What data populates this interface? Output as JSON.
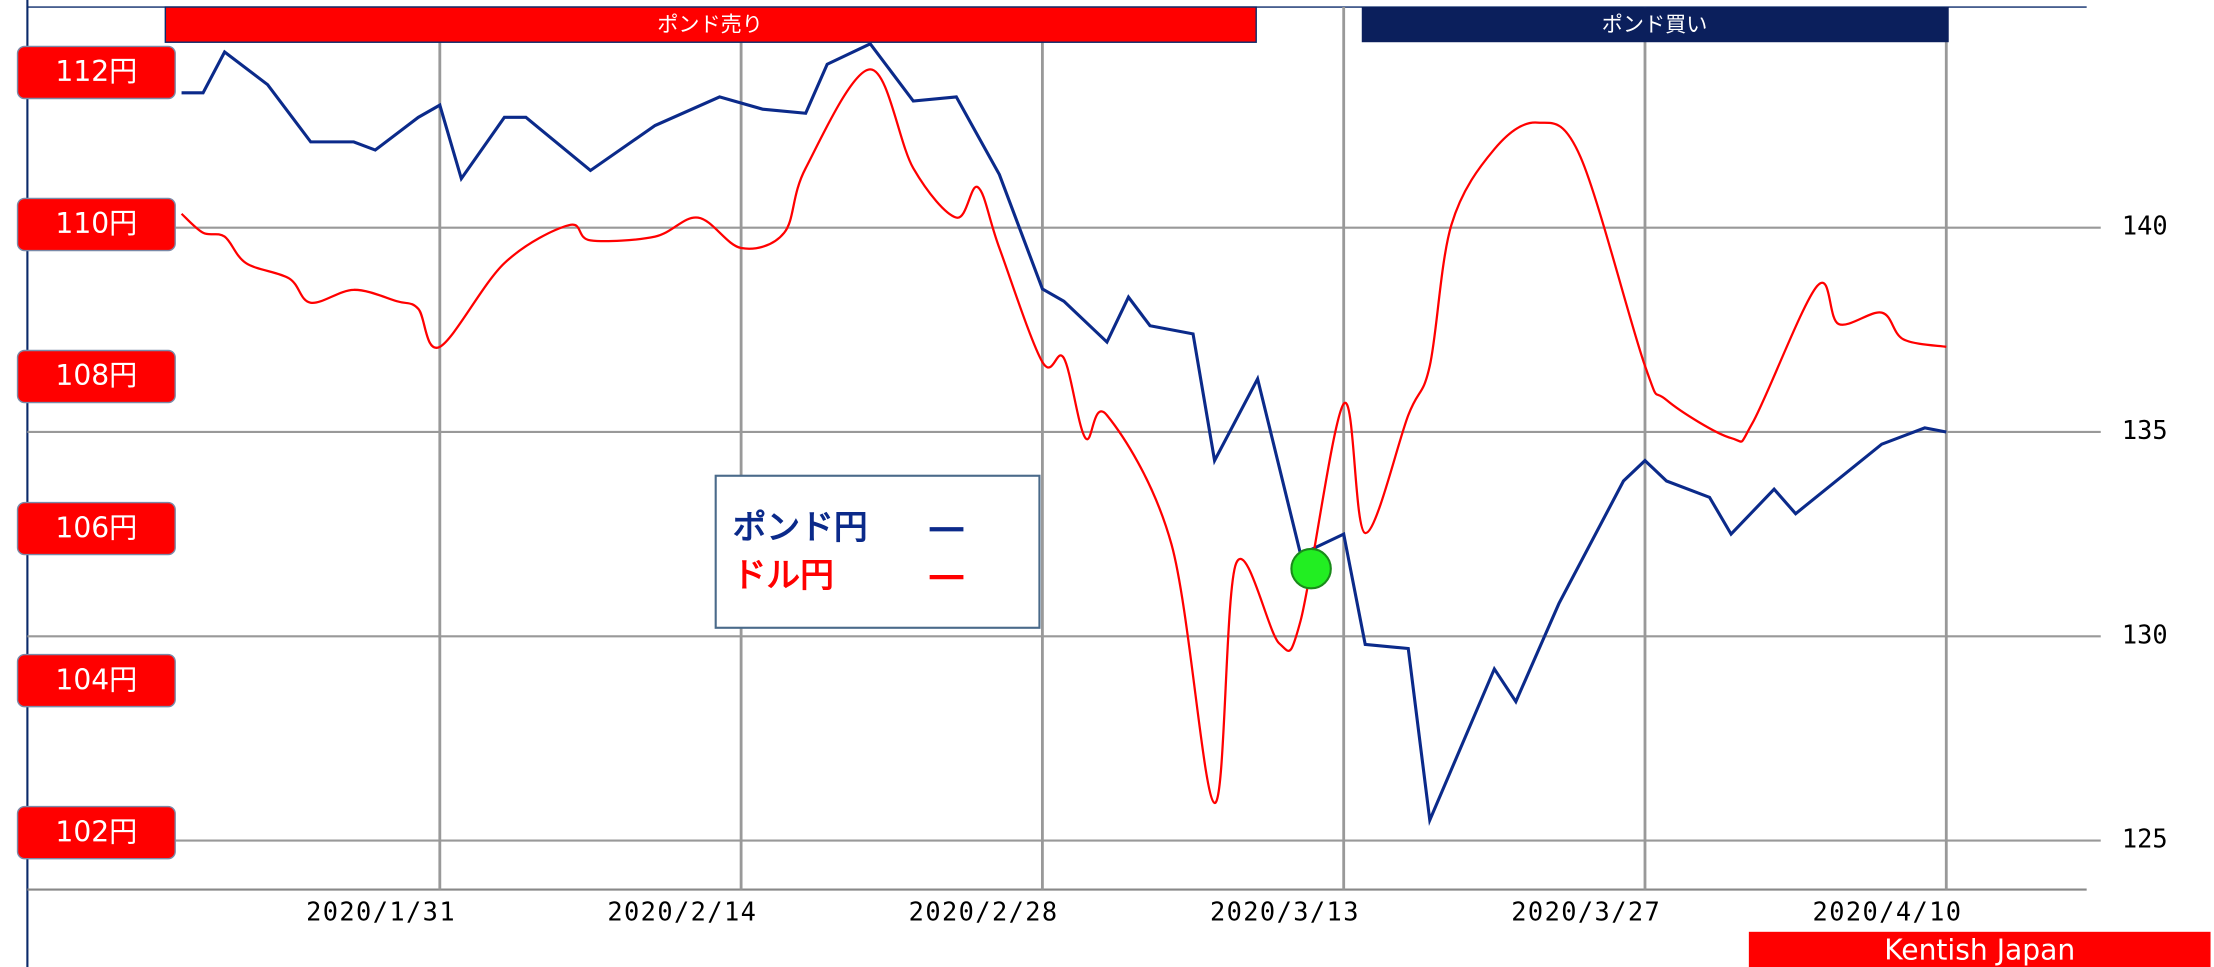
{
  "chart_data": {
    "type": "line",
    "banners": [
      "ポンド売り",
      "ポンド買い"
    ],
    "watermark": "Kentish Japan",
    "xlim": [
      "2020/1/12",
      "2020/4/16"
    ],
    "xticks": [
      "2020/1/31",
      "2020/2/14",
      "2020/2/28",
      "2020/3/13",
      "2020/3/27",
      "2020/4/10"
    ],
    "ylim": [
      101.26,
      112.87
    ],
    "yticks": [
      {
        "value": 102,
        "label": "102円"
      },
      {
        "value": 104,
        "label": "104円"
      },
      {
        "value": 106,
        "label": "106円"
      },
      {
        "value": 108,
        "label": "108円"
      },
      {
        "value": 110,
        "label": "110円"
      },
      {
        "value": 112,
        "label": "112円"
      }
    ],
    "y2lim": [
      123.8,
      145.4
    ],
    "y2ticks": [
      125,
      130,
      135,
      140
    ],
    "grid": true,
    "series": [
      {
        "name": "ポンド円",
        "color": "#0b2a8a",
        "axis": "y2",
        "x": [
          "2020/1/19",
          "2020/1/20",
          "2020/1/21",
          "2020/1/23",
          "2020/1/25",
          "2020/1/27",
          "2020/1/28",
          "2020/1/30",
          "2020/1/31",
          "2020/2/1",
          "2020/2/3",
          "2020/2/4",
          "2020/2/7",
          "2020/2/10",
          "2020/2/13",
          "2020/2/15",
          "2020/2/17",
          "2020/2/18",
          "2020/2/20",
          "2020/2/22",
          "2020/2/24",
          "2020/2/26",
          "2020/2/28",
          "2020/2/29",
          "2020/3/2",
          "2020/3/3",
          "2020/3/4",
          "2020/3/6",
          "2020/3/7",
          "2020/3/9",
          "2020/3/11",
          "2020/3/13",
          "2020/3/14",
          "2020/3/16",
          "2020/3/17",
          "2020/3/20",
          "2020/3/21",
          "2020/3/23",
          "2020/3/26",
          "2020/3/27",
          "2020/3/28",
          "2020/3/30",
          "2020/3/31",
          "2020/4/2",
          "2020/4/3",
          "2020/4/7",
          "2020/4/9",
          "2020/4/10"
        ],
        "values": [
          143.3,
          143.3,
          144.3,
          143.5,
          142.1,
          142.1,
          141.9,
          142.7,
          143.0,
          141.2,
          142.7,
          142.7,
          141.4,
          142.5,
          143.2,
          142.9,
          142.8,
          144.0,
          144.5,
          143.1,
          143.2,
          141.3,
          138.5,
          138.2,
          137.2,
          138.3,
          137.6,
          137.4,
          134.3,
          136.3,
          132.0,
          132.5,
          129.8,
          129.7,
          125.5,
          129.2,
          128.4,
          130.8,
          133.8,
          134.3,
          133.8,
          133.4,
          132.5,
          133.6,
          133.0,
          134.7,
          135.1,
          135.0
        ]
      },
      {
        "name": "ドル円",
        "color": "#ff0000",
        "axis": "y",
        "smooth": true,
        "x": [
          "2020/1/19",
          "2020/1/20",
          "2020/1/21",
          "2020/1/22",
          "2020/1/24",
          "2020/1/25",
          "2020/1/27",
          "2020/1/29",
          "2020/1/30",
          "2020/1/31",
          "2020/2/3",
          "2020/2/6",
          "2020/2/7",
          "2020/2/10",
          "2020/2/12",
          "2020/2/14",
          "2020/2/16",
          "2020/2/17",
          "2020/2/20",
          "2020/2/22",
          "2020/2/24",
          "2020/2/25",
          "2020/2/26",
          "2020/2/28",
          "2020/2/29",
          "2020/3/1",
          "2020/3/2",
          "2020/3/5",
          "2020/3/7",
          "2020/3/8",
          "2020/3/10",
          "2020/3/11",
          "2020/3/13",
          "2020/3/14",
          "2020/3/16",
          "2020/3/17",
          "2020/3/18",
          "2020/3/20",
          "2020/3/22",
          "2020/3/24",
          "2020/3/27",
          "2020/3/28",
          "2020/3/31",
          "2020/4/1",
          "2020/4/4",
          "2020/4/5",
          "2020/4/7",
          "2020/4/8",
          "2020/4/10"
        ],
        "values": [
          110.15,
          109.9,
          109.85,
          109.5,
          109.3,
          108.98,
          109.15,
          109.0,
          108.9,
          108.4,
          109.5,
          110.0,
          109.8,
          109.85,
          110.1,
          109.7,
          109.9,
          110.75,
          112.05,
          110.75,
          110.1,
          110.5,
          109.7,
          108.2,
          108.25,
          107.2,
          107.5,
          105.8,
          102.4,
          105.55,
          104.5,
          104.8,
          107.65,
          105.95,
          107.5,
          108.15,
          110.0,
          111.0,
          111.35,
          110.9,
          108.15,
          107.7,
          107.2,
          107.4,
          109.2,
          108.7,
          108.85,
          108.5,
          108.4
        ]
      }
    ]
  }
}
